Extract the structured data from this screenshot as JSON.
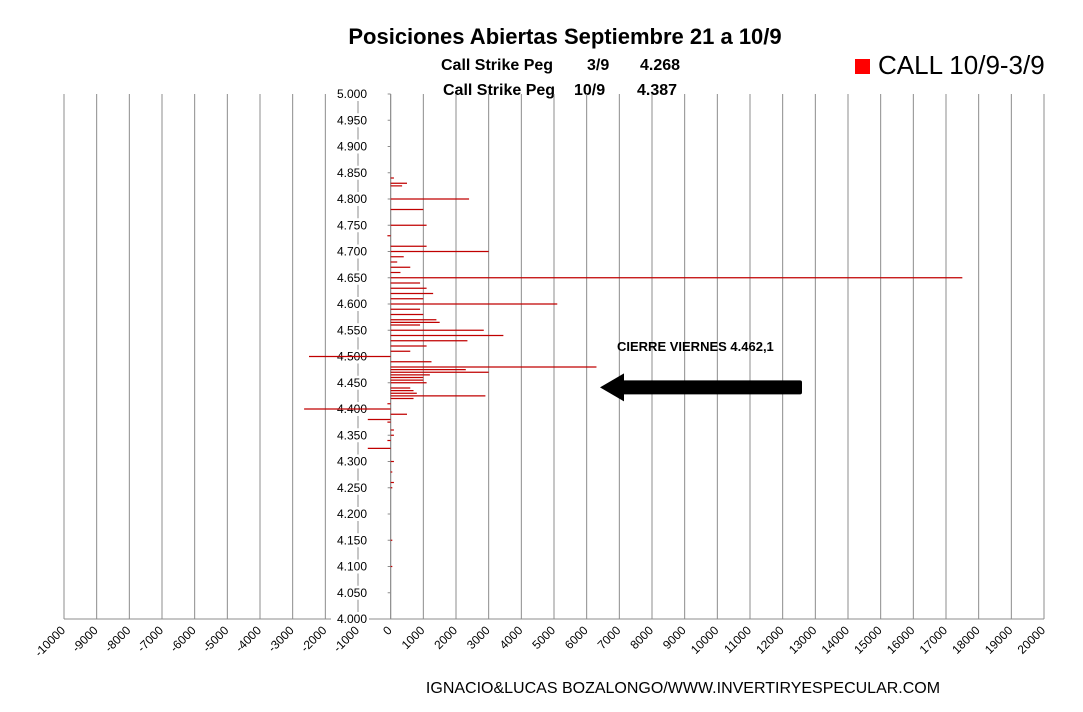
{
  "chart_data": {
    "type": "bar",
    "orientation": "horizontal",
    "title": "Posiciones Abiertas Septiembre 21 a 10/9",
    "subtitle_lines": [
      {
        "label": "Call Strike Peg",
        "date": "3/9",
        "value": "4.268"
      },
      {
        "label": "Call Strike Peg",
        "date": "10/9",
        "value": "4.387"
      }
    ],
    "legend": {
      "label": "CALL 10/9-3/9",
      "color": "#ff0000",
      "position": "top-right"
    },
    "series_color": "#c00000",
    "xlim": [
      -10000,
      20000
    ],
    "x_ticks": [
      "-10000",
      "-9000",
      "-8000",
      "-7000",
      "-6000",
      "-5000",
      "-4000",
      "-3000",
      "-2000",
      "-1000",
      "0",
      "1000",
      "2000",
      "3000",
      "4000",
      "5000",
      "6000",
      "7000",
      "8000",
      "9000",
      "10000",
      "11000",
      "12000",
      "13000",
      "14000",
      "15000",
      "16000",
      "17000",
      "18000",
      "19000",
      "20000"
    ],
    "ylim": [
      4.0,
      5.0
    ],
    "y_ticks": [
      "4.000",
      "4.050",
      "4.100",
      "4.150",
      "4.200",
      "4.250",
      "4.300",
      "4.350",
      "4.400",
      "4.450",
      "4.500",
      "4.550",
      "4.600",
      "4.650",
      "4.700",
      "4.750",
      "4.800",
      "4.850",
      "4.900",
      "4.950",
      "5.000"
    ],
    "grid": "vertical",
    "annotation": {
      "text": "CIERRE VIERNES 4.462,1",
      "strike": 4.4621
    },
    "footer": "IGNACIO&LUCAS BOZALONGO/WWW.INVERTIRYESPECULAR.COM",
    "points": [
      {
        "strike": 4.84,
        "value": 100
      },
      {
        "strike": 4.83,
        "value": 500
      },
      {
        "strike": 4.825,
        "value": 350
      },
      {
        "strike": 4.8,
        "value": 2400
      },
      {
        "strike": 4.78,
        "value": 1000
      },
      {
        "strike": 4.75,
        "value": 1100
      },
      {
        "strike": 4.73,
        "value": -100
      },
      {
        "strike": 4.71,
        "value": 1100
      },
      {
        "strike": 4.7,
        "value": 3000
      },
      {
        "strike": 4.69,
        "value": 400
      },
      {
        "strike": 4.68,
        "value": 200
      },
      {
        "strike": 4.67,
        "value": 600
      },
      {
        "strike": 4.66,
        "value": 300
      },
      {
        "strike": 4.65,
        "value": 17500
      },
      {
        "strike": 4.64,
        "value": 900
      },
      {
        "strike": 4.63,
        "value": 1100
      },
      {
        "strike": 4.62,
        "value": 1300
      },
      {
        "strike": 4.61,
        "value": 1000
      },
      {
        "strike": 4.6,
        "value": 5100
      },
      {
        "strike": 4.59,
        "value": 900
      },
      {
        "strike": 4.58,
        "value": 1000
      },
      {
        "strike": 4.57,
        "value": 1400
      },
      {
        "strike": 4.565,
        "value": 1500
      },
      {
        "strike": 4.56,
        "value": 900
      },
      {
        "strike": 4.55,
        "value": 2850
      },
      {
        "strike": 4.54,
        "value": 3450
      },
      {
        "strike": 4.53,
        "value": 2350
      },
      {
        "strike": 4.52,
        "value": 1100
      },
      {
        "strike": 4.51,
        "value": 600
      },
      {
        "strike": 4.5,
        "value": -2500
      },
      {
        "strike": 4.49,
        "value": 1250
      },
      {
        "strike": 4.48,
        "value": 6300
      },
      {
        "strike": 4.475,
        "value": 2300
      },
      {
        "strike": 4.47,
        "value": 3000
      },
      {
        "strike": 4.465,
        "value": 1200
      },
      {
        "strike": 4.46,
        "value": 1000
      },
      {
        "strike": 4.455,
        "value": 1000
      },
      {
        "strike": 4.45,
        "value": 1100
      },
      {
        "strike": 4.44,
        "value": 600
      },
      {
        "strike": 4.435,
        "value": 700
      },
      {
        "strike": 4.43,
        "value": 800
      },
      {
        "strike": 4.425,
        "value": 2900
      },
      {
        "strike": 4.42,
        "value": 700
      },
      {
        "strike": 4.41,
        "value": -100
      },
      {
        "strike": 4.4,
        "value": -2650
      },
      {
        "strike": 4.39,
        "value": 500
      },
      {
        "strike": 4.38,
        "value": -700
      },
      {
        "strike": 4.375,
        "value": -100
      },
      {
        "strike": 4.36,
        "value": 100
      },
      {
        "strike": 4.35,
        "value": 100
      },
      {
        "strike": 4.34,
        "value": -100
      },
      {
        "strike": 4.325,
        "value": -700
      },
      {
        "strike": 4.3,
        "value": 100
      },
      {
        "strike": 4.28,
        "value": 50
      },
      {
        "strike": 4.26,
        "value": 100
      },
      {
        "strike": 4.25,
        "value": 50
      },
      {
        "strike": 4.15,
        "value": 50
      },
      {
        "strike": 4.1,
        "value": 50
      }
    ]
  }
}
